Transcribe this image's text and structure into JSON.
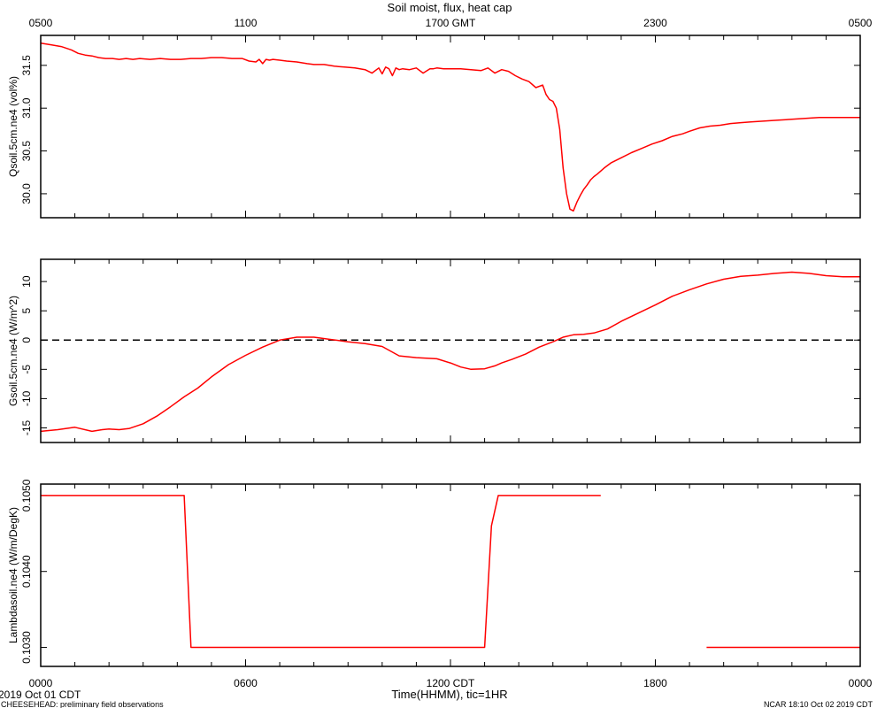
{
  "title": "Soil moist, flux, heat cap",
  "top_axis": {
    "ticks": [
      {
        "label": "0500",
        "hour": 0
      },
      {
        "label": "1100",
        "hour": 6
      },
      {
        "label": "1700 GMT",
        "hour": 12
      },
      {
        "label": "2300",
        "hour": 18
      },
      {
        "label": "0500",
        "hour": 24
      }
    ]
  },
  "bottom_axis": {
    "label": "Time(HHMM), tic=1HR",
    "ticks": [
      {
        "label": "0000",
        "hour": 0
      },
      {
        "label": "0600",
        "hour": 6
      },
      {
        "label": "1200 CDT",
        "hour": 12
      },
      {
        "label": "1800",
        "hour": 18
      },
      {
        "label": "0000",
        "hour": 24
      }
    ]
  },
  "footer": {
    "date_label": "2019 Oct 01 CDT",
    "project": "CHEESEHEAD: preliminary field observations",
    "stamp": "NCAR 18:10 Oct 02 2019 CDT"
  },
  "colors": {
    "series": "#ff0000",
    "axis": "#000000",
    "zero_line": "#000000"
  },
  "chart_data": [
    {
      "type": "line",
      "ylabel": "Qsoil.5cm.ne4 (vol%)",
      "ylim": [
        29.72,
        31.85
      ],
      "yticks": [
        {
          "value": 30.0,
          "label": "30.0"
        },
        {
          "value": 30.5,
          "label": "30.5"
        },
        {
          "value": 31.0,
          "label": "31.0"
        },
        {
          "value": 31.5,
          "label": "31.5"
        }
      ],
      "series": [
        {
          "x": [
            0,
            0.3,
            0.6,
            0.9,
            1.1,
            1.3,
            1.5,
            1.7,
            1.9,
            2.1,
            2.3,
            2.5,
            2.7,
            2.9,
            3.2,
            3.5,
            3.8,
            4.1,
            4.4,
            4.7,
            5.0,
            5.3,
            5.6,
            5.9,
            6.1,
            6.3,
            6.4,
            6.5,
            6.6,
            6.7,
            6.8,
            7.0,
            7.2,
            7.5,
            7.8,
            8.0,
            8.3,
            8.6,
            8.9,
            9.2,
            9.5,
            9.7,
            9.9,
            10.0,
            10.1,
            10.2,
            10.3,
            10.4,
            10.5,
            10.6,
            10.8,
            11.0,
            11.2,
            11.4,
            11.5,
            11.6,
            11.8,
            12.0,
            12.3,
            12.6,
            12.9,
            13.1,
            13.3,
            13.5,
            13.7,
            13.9,
            14.1,
            14.3,
            14.5,
            14.7,
            14.8,
            14.9,
            15.0,
            15.1,
            15.2,
            15.3,
            15.4,
            15.5,
            15.6,
            15.7,
            15.8,
            15.9,
            16.0,
            16.1,
            16.2,
            16.3,
            16.5,
            16.7,
            17.0,
            17.3,
            17.6,
            17.9,
            18.2,
            18.5,
            18.8,
            19.0,
            19.3,
            19.6,
            19.9,
            20.2,
            20.5,
            20.8,
            21.2,
            21.6,
            22.0,
            22.4,
            22.8,
            23.2,
            23.6,
            24.0
          ],
          "y": [
            31.76,
            31.74,
            31.72,
            31.68,
            31.64,
            31.62,
            31.61,
            31.59,
            31.58,
            31.58,
            31.57,
            31.58,
            31.57,
            31.58,
            31.57,
            31.58,
            31.57,
            31.57,
            31.58,
            31.58,
            31.59,
            31.59,
            31.58,
            31.58,
            31.55,
            31.54,
            31.57,
            31.52,
            31.57,
            31.56,
            31.57,
            31.56,
            31.55,
            31.54,
            31.52,
            31.51,
            31.51,
            31.49,
            31.48,
            31.47,
            31.45,
            31.41,
            31.47,
            31.4,
            31.48,
            31.46,
            31.38,
            31.47,
            31.45,
            31.46,
            31.45,
            31.47,
            31.41,
            31.46,
            31.46,
            31.47,
            31.46,
            31.46,
            31.46,
            31.45,
            31.44,
            31.47,
            31.41,
            31.45,
            31.43,
            31.38,
            31.34,
            31.31,
            31.24,
            31.27,
            31.16,
            31.1,
            31.08,
            31.0,
            30.75,
            30.3,
            30.0,
            29.82,
            29.8,
            29.9,
            29.98,
            30.05,
            30.1,
            30.16,
            30.2,
            30.23,
            30.3,
            30.36,
            30.42,
            30.48,
            30.53,
            30.58,
            30.62,
            30.67,
            30.7,
            30.73,
            30.77,
            30.79,
            30.8,
            30.82,
            30.83,
            30.84,
            30.85,
            30.86,
            30.87,
            30.88,
            30.89,
            30.89,
            30.89,
            30.89
          ]
        }
      ]
    },
    {
      "type": "line",
      "ylabel": "Gsoil.5cm.ne4 (W/m^2)",
      "ylim": [
        -17.5,
        13.8
      ],
      "yticks": [
        {
          "value": -15,
          "label": "-15"
        },
        {
          "value": -10,
          "label": "-10"
        },
        {
          "value": -5,
          "label": "-5"
        },
        {
          "value": 0,
          "label": "0"
        },
        {
          "value": 5,
          "label": "5"
        },
        {
          "value": 10,
          "label": "10"
        }
      ],
      "reference_line": 0,
      "series": [
        {
          "x": [
            0,
            0.5,
            1.0,
            1.5,
            1.8,
            2.0,
            2.3,
            2.6,
            3.0,
            3.4,
            3.8,
            4.2,
            4.6,
            5.0,
            5.5,
            6.0,
            6.5,
            7.0,
            7.5,
            8.0,
            8.5,
            9.0,
            9.5,
            10.0,
            10.5,
            11.0,
            11.3,
            11.6,
            12.0,
            12.3,
            12.6,
            13.0,
            13.3,
            13.5,
            13.8,
            14.2,
            14.6,
            15.0,
            15.3,
            15.6,
            15.9,
            16.2,
            16.6,
            17.0,
            17.5,
            18.0,
            18.5,
            19.0,
            19.5,
            20.0,
            20.5,
            21.0,
            21.5,
            22.0,
            22.5,
            23.0,
            23.5,
            24.0
          ],
          "y": [
            -15.6,
            -15.3,
            -14.9,
            -15.6,
            -15.3,
            -15.2,
            -15.3,
            -15.1,
            -14.3,
            -13.0,
            -11.4,
            -9.7,
            -8.2,
            -6.3,
            -4.2,
            -2.6,
            -1.2,
            0.0,
            0.5,
            0.5,
            0.1,
            -0.3,
            -0.6,
            -1.1,
            -2.7,
            -3.0,
            -3.1,
            -3.2,
            -3.9,
            -4.6,
            -5.0,
            -4.9,
            -4.4,
            -3.9,
            -3.3,
            -2.4,
            -1.2,
            -0.3,
            0.5,
            0.9,
            1.0,
            1.2,
            1.9,
            3.2,
            4.6,
            6.0,
            7.5,
            8.6,
            9.6,
            10.4,
            10.9,
            11.1,
            11.4,
            11.6,
            11.4,
            11.0,
            10.8,
            10.8
          ]
        }
      ]
    },
    {
      "type": "line",
      "ylabel": "Lambdasoil.ne4 (W/m/DegK)",
      "ylim": [
        0.10275,
        0.10515
      ],
      "yticks": [
        {
          "value": 0.103,
          "label": "0.1030"
        },
        {
          "value": 0.104,
          "label": "0.1040"
        },
        {
          "value": 0.105,
          "label": "0.1050"
        }
      ],
      "series": [
        {
          "x": [
            0,
            4.2,
            4.4,
            13.0,
            13.2,
            13.4,
            16.4
          ],
          "y": [
            0.105,
            0.105,
            0.103,
            0.103,
            0.1046,
            0.105,
            0.105
          ]
        },
        {
          "x": [
            19.5,
            24.0
          ],
          "y": [
            0.103,
            0.103
          ]
        }
      ]
    }
  ]
}
